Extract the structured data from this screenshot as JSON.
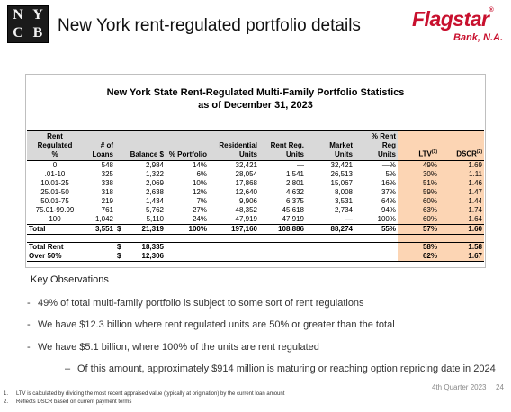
{
  "header": {
    "logo_letters": [
      "N",
      "Y",
      "C",
      "B"
    ],
    "title": "New York rent-regulated portfolio details",
    "brand": {
      "name": "Flagstar",
      "mark": "®",
      "sub": "Bank, N.A."
    }
  },
  "table": {
    "title": [
      "New York State Rent-Regulated Multi-Family Portfolio Statistics",
      "as of December 31, 2023"
    ],
    "currency": "$",
    "columns": [
      {
        "label": [
          "Rent Regulated",
          "%"
        ]
      },
      {
        "label": [
          "# of",
          "Loans"
        ]
      },
      {
        "label": [
          "Balance $"
        ]
      },
      {
        "label": [
          "% Portfolio"
        ]
      },
      {
        "label": [
          "Residential",
          "Units"
        ]
      },
      {
        "label": [
          "Rent Reg.",
          "Units"
        ]
      },
      {
        "label": [
          "Market",
          "Units"
        ]
      },
      {
        "label": [
          "% Rent Reg",
          "Units"
        ]
      },
      {
        "label": [
          "LTV"
        ],
        "sup": "(1)"
      },
      {
        "label": [
          "DSCR"
        ],
        "sup": "(2)"
      }
    ],
    "rows": [
      [
        "0",
        "548",
        "2,984",
        "14%",
        "32,421",
        "—",
        "32,421",
        "—%",
        "49%",
        "1.69"
      ],
      [
        ".01-10",
        "325",
        "1,322",
        "6%",
        "28,054",
        "1,541",
        "26,513",
        "5%",
        "30%",
        "1.11"
      ],
      [
        "10.01-25",
        "338",
        "2,069",
        "10%",
        "17,868",
        "2,801",
        "15,067",
        "16%",
        "51%",
        "1.46"
      ],
      [
        "25.01-50",
        "318",
        "2,638",
        "12%",
        "12,640",
        "4,632",
        "8,008",
        "37%",
        "59%",
        "1.47"
      ],
      [
        "50.01-75",
        "219",
        "1,434",
        "7%",
        "9,906",
        "6,375",
        "3,531",
        "64%",
        "60%",
        "1.44"
      ],
      [
        "75.01-99.99",
        "761",
        "5,762",
        "27%",
        "48,352",
        "45,618",
        "2,734",
        "94%",
        "63%",
        "1.74"
      ],
      [
        "100",
        "1,042",
        "5,110",
        "24%",
        "47,919",
        "47,919",
        "—",
        "100%",
        "60%",
        "1.64"
      ]
    ],
    "total": [
      "Total",
      "3,551",
      "21,319",
      "100%",
      "197,160",
      "108,886",
      "88,274",
      "55%",
      "57%",
      "1.60"
    ],
    "summary": [
      {
        "label": "Total Rent",
        "balance": "18,335",
        "ltv": "58%",
        "dscr": "1.58"
      },
      {
        "label": "Over 50%",
        "balance": "12,306",
        "ltv": "62%",
        "dscr": "1.67"
      }
    ]
  },
  "observations": {
    "heading": "Key Observations",
    "bullets": [
      "49% of total multi-family portfolio is subject to some sort of rent regulations",
      "We have $12.3 billion where rent regulated units are 50% or greater than the total",
      "We have $5.1 billion, where 100% of the units are rent regulated"
    ],
    "sub_bullet": "Of this amount, approximately $914 million is maturing or reaching option repricing date in 2024"
  },
  "footnotes": [
    {
      "number": "1.",
      "text": "LTV is calculated by dividing the most recent appraised value (typically at origination) by the current loan amount"
    },
    {
      "number": "2.",
      "text": "Reflects DSCR based on current payment terms"
    }
  ],
  "footer": {
    "period": "4th Quarter 2023",
    "page": "24"
  }
}
